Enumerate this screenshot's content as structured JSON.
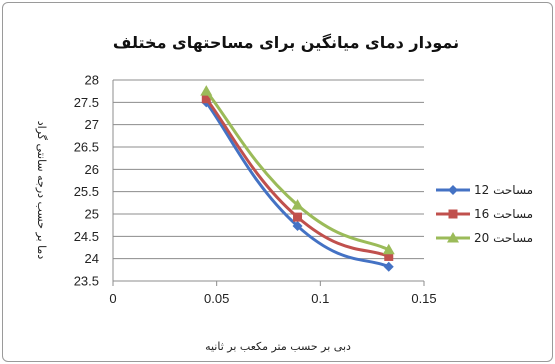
{
  "chart_data": {
    "type": "line",
    "title": "نمودار دمای  میانگین برای مساحتهای مختلف",
    "xlabel": "دبی بر حسب متر مکعب بر ثانیه",
    "ylabel": "دما بر حسب درجه سانتی گراد",
    "xlim": [
      0,
      0.15
    ],
    "ylim": [
      23.5,
      28
    ],
    "xticks": [
      0,
      0.05,
      0.1,
      0.15
    ],
    "xtick_labels": [
      "0",
      "0.05",
      "0.1",
      "0.15"
    ],
    "yticks": [
      23.5,
      24,
      24.5,
      25,
      25.5,
      26,
      26.5,
      27,
      27.5,
      28
    ],
    "ytick_labels": [
      "23.5",
      "24",
      "24.5",
      "25",
      "25.5",
      "26",
      "26.5",
      "27",
      "27.5",
      "28"
    ],
    "grid": "horizontal",
    "legend_position": "right",
    "series": [
      {
        "name": "مساحت 12",
        "color": "#4472c4",
        "marker": "diamond",
        "x": [
          0.045,
          0.089,
          0.133
        ],
        "y": [
          27.5,
          24.73,
          23.82
        ]
      },
      {
        "name": "مساحت 16",
        "color": "#c0504d",
        "marker": "square",
        "x": [
          0.045,
          0.089,
          0.133
        ],
        "y": [
          27.58,
          24.93,
          24.05
        ]
      },
      {
        "name": "مساحت 20",
        "color": "#9bbb59",
        "marker": "triangle",
        "x": [
          0.045,
          0.089,
          0.133
        ],
        "y": [
          27.75,
          25.2,
          24.2
        ]
      }
    ]
  }
}
